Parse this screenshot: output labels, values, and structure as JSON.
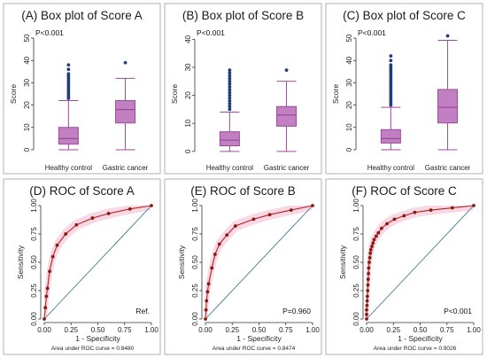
{
  "colors": {
    "box_fill": "#c27fc2",
    "box_stroke": "#9a4a9a",
    "outlier": "#1f3d7a",
    "roc_line": "#b82020",
    "roc_point": "#8a1a10",
    "ref_line": "#3a7a8a",
    "ci_band": "#f3c8d8",
    "panel_border": "#b0b0b0"
  },
  "chart_data": [
    {
      "type": "box",
      "title": "(A) Box plot of Score A",
      "ylabel": "Score",
      "ylim": [
        -2,
        52
      ],
      "yticks": [
        0,
        10,
        20,
        30,
        40,
        50
      ],
      "annotation": "P<0.001",
      "categories": [
        "Healthy control",
        "Gastric cancer"
      ],
      "boxes": [
        {
          "min": 0,
          "q1": 2.5,
          "median": 5,
          "q3": 10,
          "max": 22,
          "outliers": [
            23,
            24,
            25,
            26,
            27,
            28,
            29,
            30,
            31,
            32,
            33,
            34,
            36,
            38
          ]
        },
        {
          "min": 0,
          "q1": 12,
          "median": 18,
          "q3": 22,
          "max": 32,
          "outliers": [
            39
          ]
        }
      ]
    },
    {
      "type": "box",
      "title": "(B) Box plot of Score B",
      "ylabel": "Score",
      "ylim": [
        -1,
        42
      ],
      "yticks": [
        0,
        10,
        20,
        30,
        40
      ],
      "annotation": "P<0.001",
      "categories": [
        "Healthy control",
        "Gastric cancer"
      ],
      "boxes": [
        {
          "min": 0,
          "q1": 2,
          "median": 4,
          "q3": 7,
          "max": 14,
          "outliers": [
            15,
            16,
            17,
            18,
            19,
            20,
            21,
            22,
            23,
            24,
            25,
            26,
            27,
            28,
            29
          ]
        },
        {
          "min": 0,
          "q1": 9,
          "median": 13,
          "q3": 16,
          "max": 25,
          "outliers": [
            29
          ]
        }
      ]
    },
    {
      "type": "box",
      "title": "(C) Box plot of Score C",
      "ylabel": "Score",
      "ylim": [
        -2,
        52
      ],
      "yticks": [
        0,
        10,
        20,
        30,
        40,
        50
      ],
      "annotation": "P<0.001",
      "categories": [
        "Healthy control",
        "Gastric cancer"
      ],
      "boxes": [
        {
          "min": 0,
          "q1": 3,
          "median": 5,
          "q3": 9,
          "max": 19,
          "outliers": [
            20,
            21,
            22,
            23,
            24,
            25,
            26,
            27,
            28,
            29,
            30,
            31,
            32,
            33,
            34,
            35,
            36,
            37,
            38,
            40,
            42
          ]
        },
        {
          "min": 0,
          "q1": 12,
          "median": 19,
          "q3": 27,
          "max": 49,
          "outliers": [
            51
          ]
        }
      ]
    },
    {
      "type": "roc",
      "title": "(D) ROC of Score A",
      "xlabel": "1 - Specificity",
      "ylabel": "Sensitivity",
      "ticks": [
        "0.00",
        "0.25",
        "0.50",
        "0.75",
        "1.00"
      ],
      "annotation": "Ref.",
      "auc_label": "Area under ROC curve = 0.8480",
      "points": [
        [
          0,
          0
        ],
        [
          0.01,
          0.1
        ],
        [
          0.02,
          0.2
        ],
        [
          0.03,
          0.27
        ],
        [
          0.05,
          0.42
        ],
        [
          0.08,
          0.55
        ],
        [
          0.12,
          0.65
        ],
        [
          0.2,
          0.75
        ],
        [
          0.3,
          0.83
        ],
        [
          0.45,
          0.89
        ],
        [
          0.6,
          0.93
        ],
        [
          0.8,
          0.97
        ],
        [
          1,
          1
        ]
      ]
    },
    {
      "type": "roc",
      "title": "(E) ROC of Score B",
      "xlabel": "1 - Specificity",
      "ylabel": "Sensitivity",
      "ticks": [
        "0.00",
        "0.25",
        "0.50",
        "0.75",
        "1.00"
      ],
      "annotation": "P=0.960",
      "auc_label": "Area under ROC curve = 0.8474",
      "points": [
        [
          0,
          0
        ],
        [
          0.005,
          0.08
        ],
        [
          0.01,
          0.16
        ],
        [
          0.02,
          0.24
        ],
        [
          0.03,
          0.31
        ],
        [
          0.06,
          0.45
        ],
        [
          0.09,
          0.57
        ],
        [
          0.13,
          0.66
        ],
        [
          0.2,
          0.74
        ],
        [
          0.28,
          0.82
        ],
        [
          0.45,
          0.88
        ],
        [
          0.6,
          0.92
        ],
        [
          0.8,
          0.96
        ],
        [
          1,
          1
        ]
      ]
    },
    {
      "type": "roc",
      "title": "(F) ROC of Score C",
      "xlabel": "1 - Specificity",
      "ylabel": "Sensitivity",
      "ticks": [
        "0.00",
        "0.25",
        "0.50",
        "0.75",
        "1.00"
      ],
      "annotation": "P<0.001",
      "auc_label": "Area under ROC curve = 0.9026",
      "points": [
        [
          0,
          0
        ],
        [
          0,
          0.04
        ],
        [
          0,
          0.08
        ],
        [
          0.003,
          0.12
        ],
        [
          0.005,
          0.16
        ],
        [
          0.007,
          0.2
        ],
        [
          0.01,
          0.25
        ],
        [
          0.012,
          0.3
        ],
        [
          0.015,
          0.35
        ],
        [
          0.018,
          0.4
        ],
        [
          0.02,
          0.45
        ],
        [
          0.025,
          0.5
        ],
        [
          0.03,
          0.54
        ],
        [
          0.035,
          0.58
        ],
        [
          0.04,
          0.61
        ],
        [
          0.05,
          0.64
        ],
        [
          0.06,
          0.67
        ],
        [
          0.07,
          0.7
        ],
        [
          0.09,
          0.73
        ],
        [
          0.11,
          0.76
        ],
        [
          0.14,
          0.8
        ],
        [
          0.19,
          0.84
        ],
        [
          0.26,
          0.88
        ],
        [
          0.35,
          0.91
        ],
        [
          0.45,
          0.94
        ],
        [
          0.6,
          0.96
        ],
        [
          0.8,
          0.98
        ],
        [
          1,
          1
        ]
      ]
    }
  ]
}
